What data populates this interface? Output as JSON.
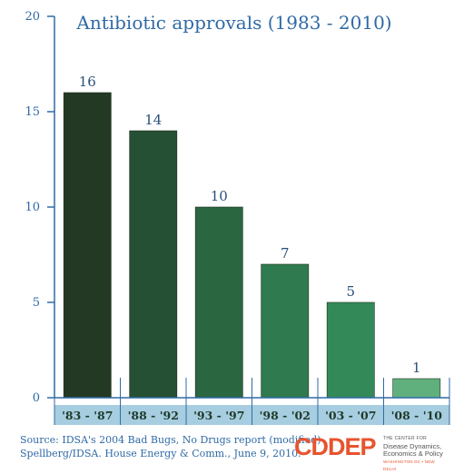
{
  "chart_data": {
    "type": "bar",
    "title": "Antibiotic approvals (1983 - 2010)",
    "categories": [
      "'83 - '87",
      "'88 - '92",
      "'93 - '97",
      "'98 - '02",
      "'03 - '07",
      "'08 - '10"
    ],
    "values": [
      16,
      14,
      10,
      7,
      5,
      1
    ],
    "ylim": [
      0,
      20
    ],
    "yticks": [
      0,
      5,
      10,
      15,
      20
    ],
    "xlabel": "",
    "ylabel": "",
    "grid": false,
    "colors": [
      "#243924",
      "#265034",
      "#2a6640",
      "#2f7a4e",
      "#338a58",
      "#60b07e"
    ],
    "category_band_color": "#a7cde0"
  },
  "source": {
    "line1": "Source: IDSA's 2004 Bad Bugs, No Drugs report (modified)",
    "line2": "Spellberg/IDSA. House Energy & Comm., June 9, 2010."
  },
  "logo": {
    "name": "CDDEP",
    "line1": "THE CENTER FOR",
    "line2": "Disease Dynamics,",
    "line3": "Economics & Policy",
    "line4": "WASHINGTON DC • NEW DELHI"
  }
}
